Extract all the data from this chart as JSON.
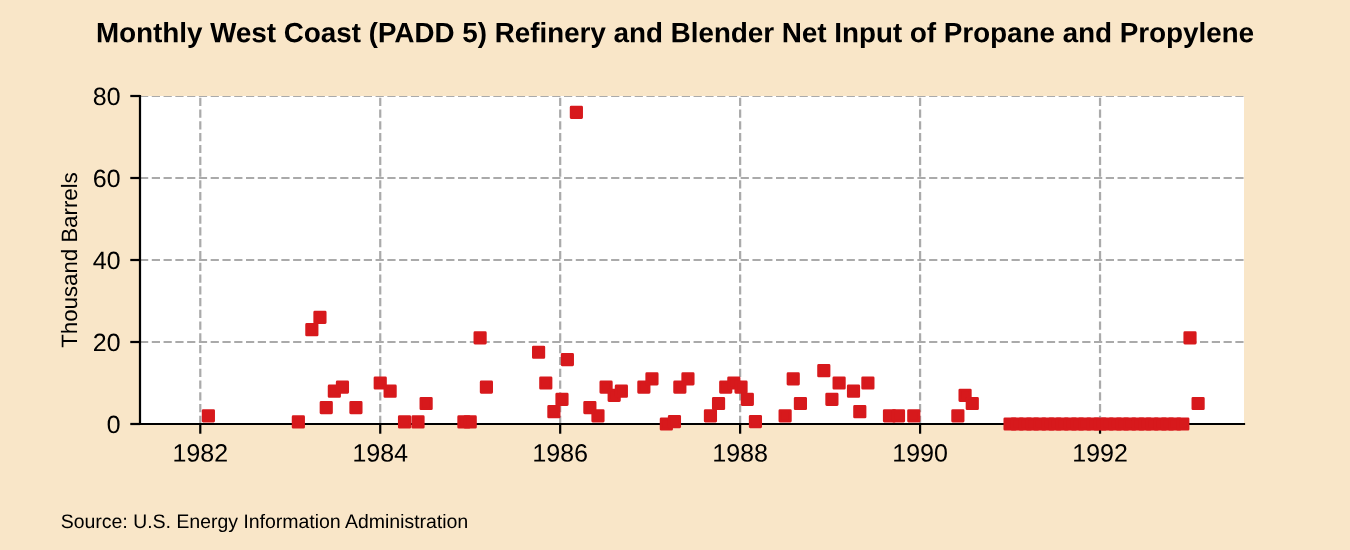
{
  "chart_data": {
    "type": "scatter",
    "title": "Monthly West Coast (PADD 5) Refinery and Blender Net Input of Propane and Propylene",
    "ylabel": "Thousand Barrels",
    "annotations": [
      "Source: U.S. Energy Information Administration"
    ],
    "x": [
      1982.09,
      1983.09,
      1983.24,
      1983.33,
      1983.4,
      1983.49,
      1983.58,
      1983.73,
      1984.0,
      1984.11,
      1984.27,
      1984.42,
      1984.51,
      1984.93,
      1985.0,
      1985.11,
      1985.18,
      1985.76,
      1985.84,
      1985.93,
      1986.02,
      1986.08,
      1986.18,
      1986.33,
      1986.42,
      1986.51,
      1986.6,
      1986.68,
      1986.93,
      1987.02,
      1987.18,
      1987.27,
      1987.33,
      1987.42,
      1987.67,
      1987.76,
      1987.84,
      1987.93,
      1988.01,
      1988.08,
      1988.17,
      1988.5,
      1988.59,
      1988.67,
      1988.93,
      1989.02,
      1989.1,
      1989.26,
      1989.33,
      1989.42,
      1989.66,
      1989.76,
      1989.93,
      1990.42,
      1990.5,
      1990.58,
      1991.0,
      1991.08,
      1991.17,
      1991.25,
      1991.33,
      1991.42,
      1991.5,
      1991.58,
      1991.67,
      1991.75,
      1991.83,
      1991.92,
      1992.0,
      1992.08,
      1992.17,
      1992.25,
      1992.33,
      1992.42,
      1992.5,
      1992.58,
      1992.67,
      1992.75,
      1992.83,
      1992.92,
      1993.0,
      1993.09
    ],
    "series": [
      {
        "color": "#d7191c",
        "values": [
          2,
          0.5,
          23,
          26,
          4,
          8,
          9,
          4,
          10,
          8,
          0.5,
          0.5,
          5,
          0.5,
          0.5,
          21,
          9,
          17.5,
          10,
          3,
          6,
          15.7,
          76,
          4,
          2,
          9,
          7,
          8,
          9,
          11,
          0,
          0.6,
          9,
          11,
          2,
          5,
          9,
          10,
          9,
          6,
          0.6,
          2,
          11,
          5,
          13,
          6,
          10,
          8,
          3,
          10,
          2,
          2,
          2,
          2,
          7,
          5,
          0,
          0,
          0,
          0,
          0,
          0,
          0,
          0,
          0,
          0,
          0,
          0,
          0,
          0,
          0,
          0,
          0,
          0,
          0,
          0,
          0,
          0,
          0,
          0,
          21,
          5
        ]
      }
    ],
    "xlim": [
      1981.33,
      1993.6
    ],
    "xticks": [
      1982,
      1984,
      1986,
      1988,
      1990,
      1992
    ],
    "ylim": [
      0,
      80
    ],
    "yticks": [
      0,
      20,
      40,
      60,
      80
    ],
    "grid": true,
    "marker": "square",
    "legend": false
  }
}
